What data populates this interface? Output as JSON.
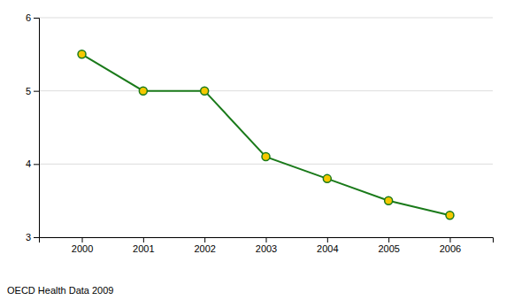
{
  "chart_data": {
    "type": "line",
    "x": [
      2000,
      2001,
      2002,
      2003,
      2004,
      2005,
      2006
    ],
    "values": [
      5.5,
      5.0,
      5.0,
      4.1,
      3.8,
      3.5,
      3.3
    ],
    "color": "#1a7a1a",
    "marker": "circle",
    "xlim": [
      1999.3,
      2006.7
    ],
    "xticks": [
      2000,
      2001,
      2002,
      2003,
      2004,
      2005,
      2006
    ],
    "ylim": [
      3,
      6
    ],
    "yticks": [
      3,
      4,
      5,
      6
    ],
    "grid": true,
    "annotation": "OECD Health Data 2009"
  }
}
